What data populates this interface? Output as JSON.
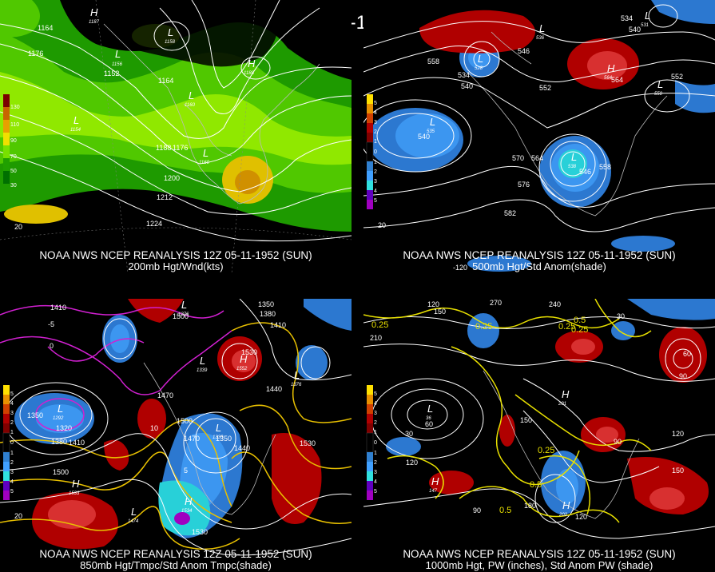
{
  "main_title": "12Z 05-11-1952 (SUN)",
  "panels": [
    {
      "caption_line1": "NOAA NWS NCEP REANALYSIS 12Z 05-11-1952 (SUN)",
      "caption_line2": "200mb Hgt/Wnd(kts)",
      "legend_labels": [
        "130",
        "110",
        "90",
        "70",
        "50",
        "30"
      ],
      "legend_colors": [
        "#7a0000",
        "#c86400",
        "#e8a000",
        "#f0e000",
        "#78e000",
        "#20a000",
        "#007000"
      ],
      "contour_labels": [
        "1164",
        "1176",
        "1152",
        "1164",
        "1188",
        "1176",
        "1200",
        "1212",
        "1224",
        "20"
      ],
      "high_low": [
        {
          "letter": "H",
          "value": "1187"
        },
        {
          "letter": "L",
          "value": "1158"
        },
        {
          "letter": "L",
          "value": "1156"
        },
        {
          "letter": "H",
          "value": "1188"
        },
        {
          "letter": "L",
          "value": "1160"
        },
        {
          "letter": "L",
          "value": "1154"
        },
        {
          "letter": "L",
          "value": "1160"
        }
      ]
    },
    {
      "caption_line1": "NOAA NWS NCEP REANALYSIS 12Z 05-11-1952 (SUN)",
      "caption_line2": "500mb Hgt/Std Anom(shade)",
      "legend_labels": [
        "5",
        "4",
        "3",
        "2",
        "1",
        "0",
        "1",
        "2",
        "3",
        "4",
        "5"
      ],
      "legend_colors": [
        "#ffe000",
        "#e89000",
        "#d04000",
        "#b00000",
        "#800000",
        "#000000",
        "#000000",
        "#3080d0",
        "#40a0ff",
        "#30e0e0",
        "#6000c0",
        "#a000c0"
      ],
      "contour_labels": [
        "558",
        "534",
        "540",
        "546",
        "552",
        "564",
        "540",
        "570",
        "564",
        "558",
        "546",
        "576",
        "582",
        "534",
        "540",
        "552",
        "20",
        "-120"
      ],
      "high_low": [
        {
          "letter": "L",
          "value": "528"
        },
        {
          "letter": "H",
          "value": "564"
        },
        {
          "letter": "L",
          "value": "535"
        },
        {
          "letter": "L",
          "value": "538"
        },
        {
          "letter": "L",
          "value": "550"
        },
        {
          "letter": "L",
          "value": "531"
        },
        {
          "letter": "L",
          "value": "536"
        }
      ]
    },
    {
      "caption_line1": "NOAA NWS NCEP REANALYSIS 12Z 05-11-1952 (SUN)",
      "caption_line2": "850mb Hgt/Tmpc/Std Anom Tmpc(shade)",
      "legend_labels": [
        "5",
        "4",
        "3",
        "2",
        "1",
        "0",
        "1",
        "2",
        "3",
        "4",
        "5"
      ],
      "legend_colors": [
        "#ffe000",
        "#e89000",
        "#d04000",
        "#b00000",
        "#800000",
        "#000000",
        "#000000",
        "#3080d0",
        "#40a0ff",
        "#30e0e0",
        "#6000c0",
        "#a000c0"
      ],
      "contour_labels": [
        "1410",
        "1500",
        "1350",
        "1380",
        "1410",
        "1530",
        "1470",
        "1440",
        "1350",
        "1320",
        "1380",
        "1410",
        "1500",
        "1470",
        "1350",
        "1440",
        "1530",
        "1500",
        "1530",
        "20",
        "-5",
        "0",
        "5",
        "10"
      ],
      "high_low": [
        {
          "letter": "L",
          "value": "1376"
        },
        {
          "letter": "H",
          "value": "1552"
        },
        {
          "letter": "L",
          "value": "1339"
        },
        {
          "letter": "L",
          "value": "1376"
        },
        {
          "letter": "L",
          "value": "1292"
        },
        {
          "letter": "L",
          "value": "1333"
        },
        {
          "letter": "H",
          "value": "1533"
        },
        {
          "letter": "L",
          "value": "1474"
        },
        {
          "letter": "H",
          "value": "1534"
        }
      ]
    },
    {
      "caption_line1": "NOAA NWS NCEP REANALYSIS 12Z 05-11-1952 (SUN)",
      "caption_line2": "1000mb Hgt, PW (inches), Std Anom PW (shade)",
      "legend_labels": [
        "5",
        "4",
        "3",
        "2",
        "1",
        "0",
        "1",
        "2",
        "3",
        "4",
        "5"
      ],
      "legend_colors": [
        "#ffe000",
        "#e89000",
        "#d04000",
        "#b00000",
        "#800000",
        "#000000",
        "#000000",
        "#3080d0",
        "#40a0ff",
        "#30e0e0",
        "#6000c0",
        "#a000c0"
      ],
      "contour_labels": [
        "120",
        "150",
        "270",
        "240",
        "0.25",
        "210",
        "0.25",
        "30",
        "60",
        "90",
        "150",
        "120",
        "30",
        "60",
        "90",
        "120",
        "150",
        "0.25",
        "0.5",
        "0.5",
        "90",
        "180",
        "120",
        "0.25",
        "0.5",
        "0.25"
      ],
      "high_low": [
        {
          "letter": "H",
          "value": "201"
        },
        {
          "letter": "L",
          "value": "36"
        },
        {
          "letter": "H",
          "value": "147"
        },
        {
          "letter": "H",
          "value": "202"
        }
      ]
    }
  ]
}
